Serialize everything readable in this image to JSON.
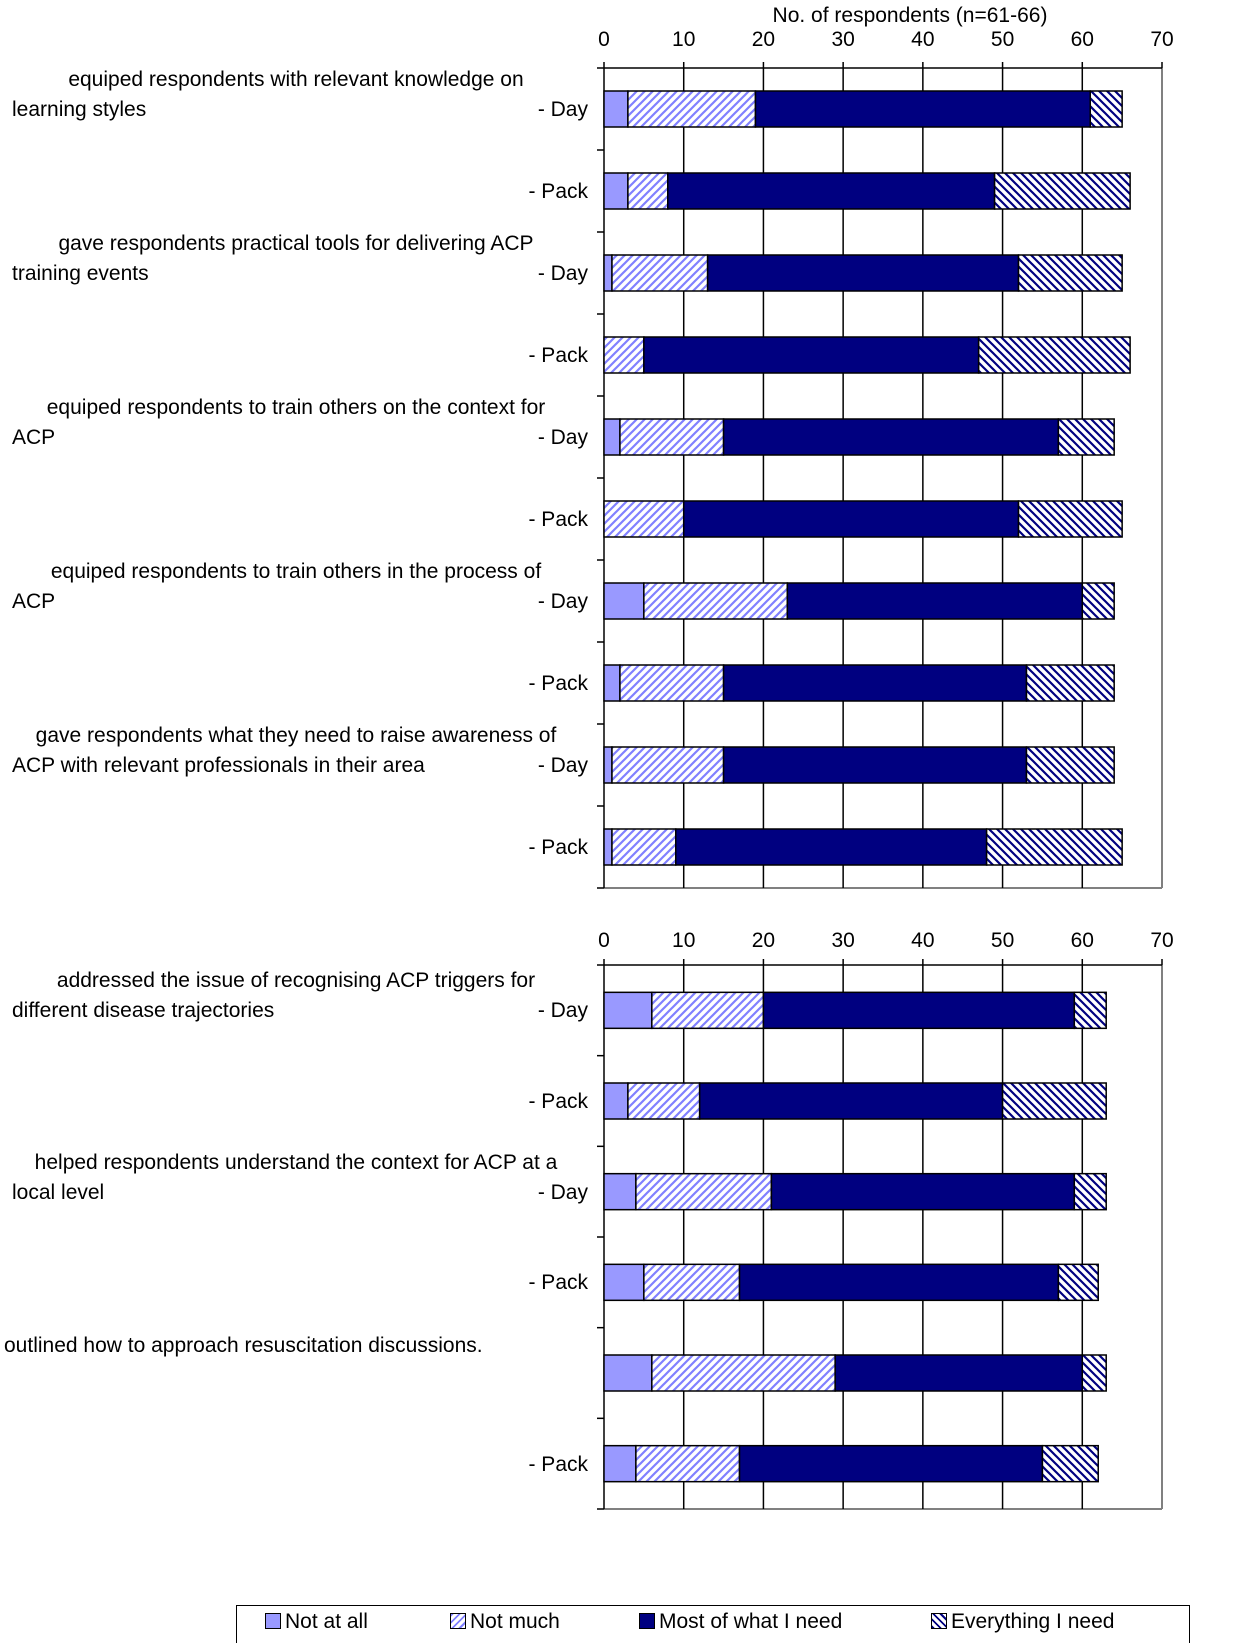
{
  "chart_data": [
    {
      "type": "bar",
      "orientation": "horizontal",
      "stacked": true,
      "title": "No. of respondents (n=61-66)",
      "xlim": [
        0,
        70
      ],
      "x_ticks": [
        "0",
        "10",
        "20",
        "30",
        "40",
        "50",
        "60",
        "70"
      ],
      "grid": true,
      "categories": [
        {
          "question": "equiped respondents with relevant knowledge on\nlearning styles",
          "source": "- Day"
        },
        {
          "question": "",
          "source": "- Pack"
        },
        {
          "question": "gave respondents practical tools for delivering ACP\ntraining events",
          "source": "- Day"
        },
        {
          "question": "",
          "source": "- Pack"
        },
        {
          "question": "equiped respondents to train others on the context for\nACP",
          "source": "- Day"
        },
        {
          "question": "",
          "source": "- Pack"
        },
        {
          "question": "equiped respondents to train others in the process of\nACP",
          "source": "- Day"
        },
        {
          "question": "",
          "source": "- Pack"
        },
        {
          "question": "gave respondents what they need to raise awareness of\nACP with relevant professionals in their area",
          "source": "- Day"
        },
        {
          "question": "",
          "source": "- Pack"
        }
      ],
      "series": [
        {
          "name": "Not at all",
          "values": [
            3,
            3,
            1,
            0,
            2,
            0,
            5,
            2,
            1,
            1
          ]
        },
        {
          "name": "Not much",
          "values": [
            16,
            5,
            12,
            5,
            13,
            10,
            18,
            13,
            14,
            8
          ]
        },
        {
          "name": "Most of what I need",
          "values": [
            42,
            41,
            39,
            42,
            42,
            42,
            37,
            38,
            38,
            39
          ]
        },
        {
          "name": "Everything I need",
          "values": [
            4,
            17,
            13,
            19,
            7,
            13,
            4,
            11,
            11,
            17
          ]
        }
      ]
    },
    {
      "type": "bar",
      "orientation": "horizontal",
      "stacked": true,
      "xlim": [
        0,
        70
      ],
      "x_ticks": [
        "0",
        "10",
        "20",
        "30",
        "40",
        "50",
        "60",
        "70"
      ],
      "grid": true,
      "categories": [
        {
          "question": "addressed the issue of recognising ACP triggers for\ndifferent disease trajectories",
          "source": "- Day"
        },
        {
          "question": "",
          "source": "- Pack"
        },
        {
          "question": "helped respondents understand the context for ACP at a\nlocal level",
          "source": "- Day"
        },
        {
          "question": "",
          "source": "- Pack"
        },
        {
          "question": "outlined how to approach resuscitation discussions.",
          "source": ""
        },
        {
          "question": "",
          "source": "- Pack"
        }
      ],
      "series": [
        {
          "name": "Not at all",
          "values": [
            6,
            3,
            4,
            5,
            6,
            4
          ]
        },
        {
          "name": "Not much",
          "values": [
            14,
            9,
            17,
            12,
            23,
            13
          ]
        },
        {
          "name": "Most of what I need",
          "values": [
            39,
            38,
            38,
            40,
            31,
            38
          ]
        },
        {
          "name": "Everything I need",
          "values": [
            4,
            13,
            4,
            5,
            3,
            7
          ]
        }
      ]
    }
  ],
  "legend": {
    "position": "bottom",
    "items": [
      {
        "label": "Not at all",
        "color": "#9999ff",
        "pattern": "solid"
      },
      {
        "label": "Not much",
        "color": "#8080ff",
        "pattern": "diagonal-hatch"
      },
      {
        "label": "Most of what I need",
        "color": "#000080",
        "pattern": "solid"
      },
      {
        "label": "Everything I need",
        "color": "#000080",
        "pattern": "diagonal-hatch"
      }
    ]
  }
}
